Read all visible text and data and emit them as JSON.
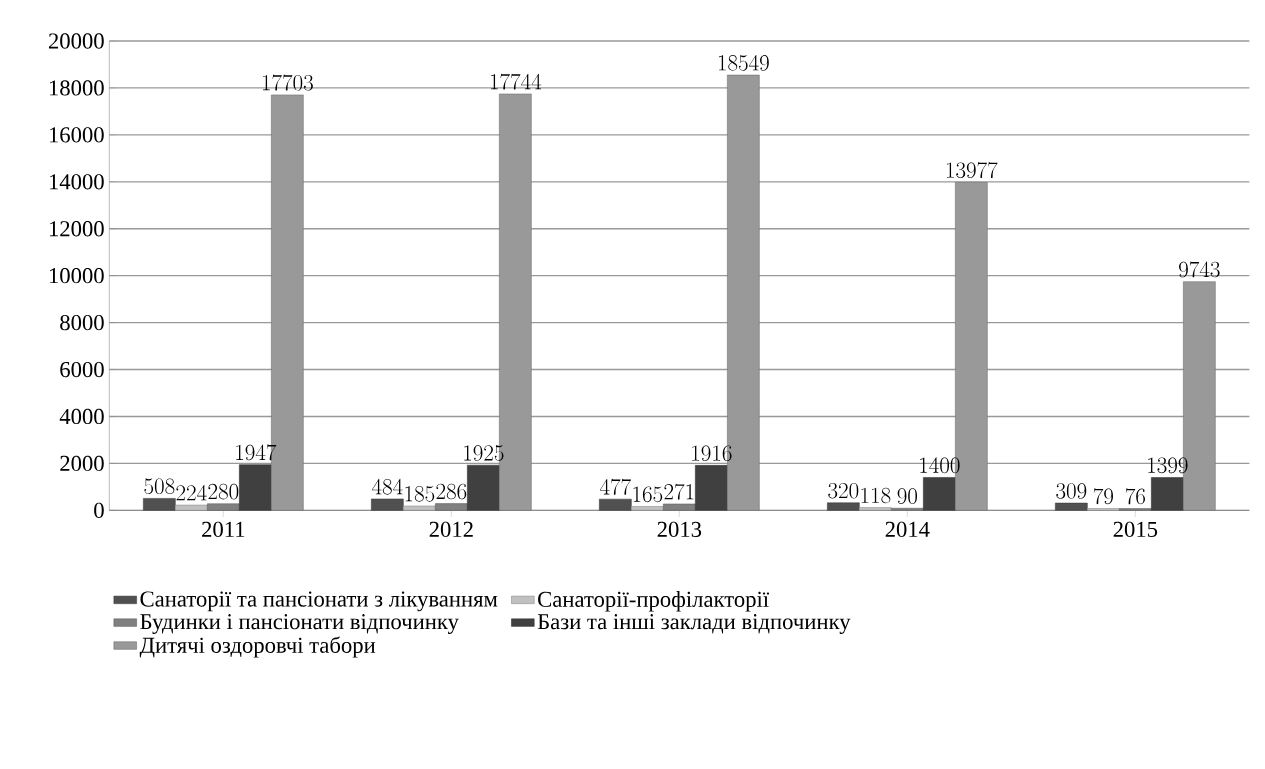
{
  "chart_data": {
    "type": "bar",
    "categories": [
      "2011",
      "2012",
      "2013",
      "2014",
      "2015"
    ],
    "series": [
      {
        "name": "Санаторії та пансіонати з лікуванням",
        "color": "#505050",
        "values": [
          508,
          484,
          477,
          320,
          309
        ]
      },
      {
        "name": "Санаторії-профілакторії",
        "color": "#c0c0c0",
        "values": [
          224,
          185,
          165,
          118,
          79
        ]
      },
      {
        "name": "Будинки і пансіонати відпочинку",
        "color": "#808080",
        "values": [
          280,
          286,
          271,
          90,
          76
        ]
      },
      {
        "name": "Бази та інші заклади відпочинку",
        "color": "#404040",
        "values": [
          1947,
          1925,
          1916,
          1400,
          1399
        ]
      },
      {
        "name": "Дитячі оздоровчі табори",
        "color": "#999999",
        "values": [
          17703,
          17744,
          18549,
          13977,
          9743
        ]
      }
    ],
    "ylim": [
      0,
      20000
    ],
    "yticks": [
      0,
      2000,
      4000,
      6000,
      8000,
      10000,
      12000,
      14000,
      16000,
      18000,
      20000
    ],
    "grid": "y",
    "legend": "bottom",
    "data_labels": true
  }
}
